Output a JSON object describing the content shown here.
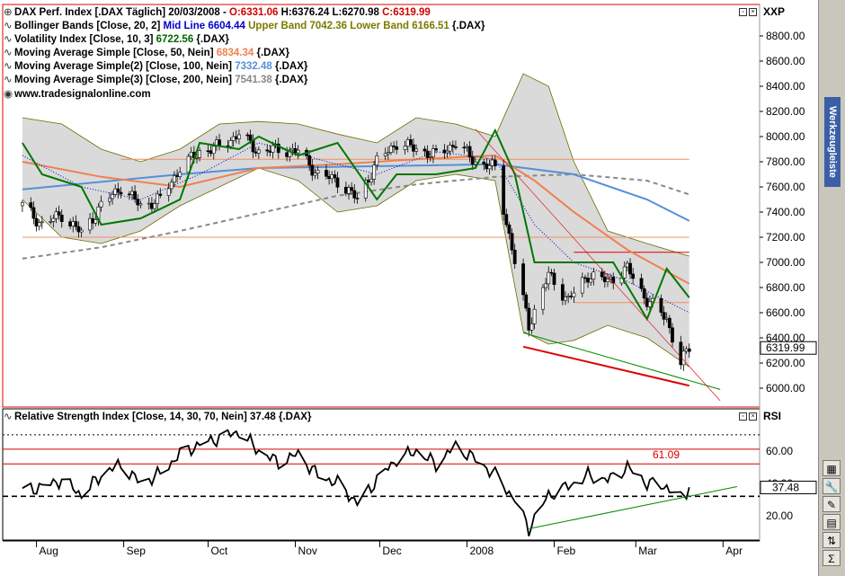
{
  "legend": {
    "price": {
      "prefix": "DAX Perf. Index [.DAX  Täglich] 20/03/2008 - ",
      "open": "O:6331.06",
      "high": " H:6376.24 L:6270.98 ",
      "close": "C:6319.99"
    },
    "bollinger": {
      "name": "Bollinger Bands [Close, 20, 2] ",
      "mid": "Mid Line 6604.44",
      "upper": " Upper Band 7042.36 Lower Band 6166.51",
      "suffix": " {.DAX}"
    },
    "volatility": {
      "name": "Volatility Index [Close, 10, 3] ",
      "value": "6722.56",
      "suffix": " {.DAX}"
    },
    "ma50": {
      "name": "Moving Average Simple [Close, 50, Nein] ",
      "value": "6834.34",
      "suffix": " {.DAX}"
    },
    "ma100": {
      "name": "Moving Average Simple(2) [Close, 100, Nein] ",
      "value": "7332.48",
      "suffix": " {.DAX}"
    },
    "ma200": {
      "name": "Moving Average Simple(3) [Close, 200, Nein] ",
      "value": "7541.38",
      "suffix": " {.DAX}"
    },
    "website": "www.tradesignalonline.com",
    "rsi": "Relative Strength Index [Close, 14, 30, 70, Nein] 37.48 {.DAX}"
  },
  "toolbar": {
    "title": "Werkzeugleiste"
  },
  "colors": {
    "candle_up": "#ffffff",
    "candle_down": "#000000",
    "bollinger_fill": "#d4d4d4",
    "bollinger_edge": "#6b6b00",
    "volatility": "#007700",
    "ma50": "#f08050",
    "ma100": "#5590d8",
    "ma200": "#888888",
    "mid_line": "#0000cc",
    "rsi": "#000000",
    "horizontal_lines": "#ff0000",
    "support": "#dd0000",
    "trend_green": "#008800"
  },
  "chart_data": [
    {
      "type": "candlestick",
      "axis_label": "XXP",
      "ylim": [
        5850,
        9050
      ],
      "y_ticks": [
        "8800.00",
        "8600.00",
        "8400.00",
        "8200.00",
        "8000.00",
        "7800.00",
        "7600.00",
        "7400.00",
        "7200.00",
        "7000.00",
        "6800.00",
        "6600.00",
        "6400.00",
        "6200.00",
        "6000.00"
      ],
      "x_labels": [
        "Aug",
        "Sep",
        "Oct",
        "Nov",
        "Dec",
        "2008",
        "Feb",
        "Mar",
        "Apr"
      ],
      "last_value": "6319.99",
      "close_path": [
        [
          "2007-07-27",
          7450
        ],
        [
          "2007-08-03",
          7300
        ],
        [
          "2007-08-10",
          7380
        ],
        [
          "2007-08-17",
          7230
        ],
        [
          "2007-08-24",
          7450
        ],
        [
          "2007-08-31",
          7600
        ],
        [
          "2007-09-07",
          7450
        ],
        [
          "2007-09-14",
          7500
        ],
        [
          "2007-09-21",
          7750
        ],
        [
          "2007-09-28",
          7880
        ],
        [
          "2007-10-05",
          7920
        ],
        [
          "2007-10-12",
          8020
        ],
        [
          "2007-10-19",
          7880
        ],
        [
          "2007-10-26",
          7900
        ],
        [
          "2007-11-02",
          7880
        ],
        [
          "2007-11-09",
          7700
        ],
        [
          "2007-11-16",
          7650
        ],
        [
          "2007-11-23",
          7500
        ],
        [
          "2007-11-30",
          7800
        ],
        [
          "2007-12-07",
          7950
        ],
        [
          "2007-12-14",
          7900
        ],
        [
          "2007-12-21",
          7850
        ],
        [
          "2007-12-28",
          7950
        ],
        [
          "2008-01-04",
          7800
        ],
        [
          "2008-01-11",
          7750
        ],
        [
          "2008-01-18",
          7000
        ],
        [
          "2008-01-23",
          6500
        ],
        [
          "2008-01-30",
          6900
        ],
        [
          "2008-02-06",
          6700
        ],
        [
          "2008-02-13",
          6900
        ],
        [
          "2008-02-20",
          6850
        ],
        [
          "2008-02-27",
          6950
        ],
        [
          "2008-03-05",
          6700
        ],
        [
          "2008-03-12",
          6550
        ],
        [
          "2008-03-17",
          6200
        ],
        [
          "2008-03-20",
          6320
        ]
      ],
      "bollinger_upper": [
        [
          "2007-07-27",
          8150
        ],
        [
          "2007-08-10",
          8100
        ],
        [
          "2007-08-24",
          7900
        ],
        [
          "2007-09-07",
          7800
        ],
        [
          "2007-09-21",
          7900
        ],
        [
          "2007-10-05",
          8100
        ],
        [
          "2007-10-19",
          8120
        ],
        [
          "2007-11-02",
          8100
        ],
        [
          "2007-11-16",
          8020
        ],
        [
          "2007-11-30",
          7950
        ],
        [
          "2007-12-14",
          8150
        ],
        [
          "2007-12-28",
          8100
        ],
        [
          "2008-01-11",
          8000
        ],
        [
          "2008-01-21",
          8500
        ],
        [
          "2008-01-30",
          8400
        ],
        [
          "2008-02-08",
          7800
        ],
        [
          "2008-02-20",
          7250
        ],
        [
          "2008-03-05",
          7150
        ],
        [
          "2008-03-20",
          7050
        ]
      ],
      "bollinger_lower": [
        [
          "2007-07-27",
          7500
        ],
        [
          "2007-08-10",
          7200
        ],
        [
          "2007-08-24",
          7150
        ],
        [
          "2007-09-07",
          7250
        ],
        [
          "2007-09-21",
          7450
        ],
        [
          "2007-10-05",
          7600
        ],
        [
          "2007-10-19",
          7750
        ],
        [
          "2007-11-02",
          7650
        ],
        [
          "2007-11-16",
          7400
        ],
        [
          "2007-11-30",
          7450
        ],
        [
          "2007-12-14",
          7650
        ],
        [
          "2007-12-28",
          7700
        ],
        [
          "2008-01-11",
          7650
        ],
        [
          "2008-01-21",
          6450
        ],
        [
          "2008-01-30",
          6350
        ],
        [
          "2008-02-08",
          6380
        ],
        [
          "2008-02-20",
          6500
        ],
        [
          "2008-03-05",
          6400
        ],
        [
          "2008-03-20",
          6170
        ]
      ],
      "mid_line": [
        [
          "2007-07-27",
          7850
        ],
        [
          "2007-08-17",
          7600
        ],
        [
          "2007-09-07",
          7500
        ],
        [
          "2007-09-28",
          7700
        ],
        [
          "2007-10-19",
          7950
        ],
        [
          "2007-11-09",
          7820
        ],
        [
          "2007-11-30",
          7700
        ],
        [
          "2007-12-21",
          7880
        ],
        [
          "2008-01-11",
          7820
        ],
        [
          "2008-01-25",
          7300
        ],
        [
          "2008-02-08",
          7000
        ],
        [
          "2008-02-27",
          6850
        ],
        [
          "2008-03-20",
          6600
        ]
      ],
      "volatility": [
        [
          "2007-07-27",
          7950
        ],
        [
          "2007-08-03",
          7700
        ],
        [
          "2007-08-17",
          7600
        ],
        [
          "2007-08-24",
          7300
        ],
        [
          "2007-09-07",
          7350
        ],
        [
          "2007-09-21",
          7500
        ],
        [
          "2007-09-28",
          7950
        ],
        [
          "2007-10-12",
          7900
        ],
        [
          "2007-10-19",
          8000
        ],
        [
          "2007-11-02",
          7850
        ],
        [
          "2007-11-16",
          7950
        ],
        [
          "2007-11-30",
          7500
        ],
        [
          "2007-12-07",
          7700
        ],
        [
          "2007-12-21",
          7700
        ],
        [
          "2008-01-04",
          7750
        ],
        [
          "2008-01-11",
          8050
        ],
        [
          "2008-01-18",
          7700
        ],
        [
          "2008-01-25",
          7000
        ],
        [
          "2008-02-08",
          7000
        ],
        [
          "2008-02-22",
          7000
        ],
        [
          "2008-03-05",
          6550
        ],
        [
          "2008-03-12",
          6950
        ],
        [
          "2008-03-20",
          6720
        ]
      ],
      "ma50": [
        [
          "2007-07-27",
          7800
        ],
        [
          "2007-08-24",
          7680
        ],
        [
          "2007-09-21",
          7600
        ],
        [
          "2007-10-19",
          7750
        ],
        [
          "2007-11-16",
          7780
        ],
        [
          "2007-12-14",
          7820
        ],
        [
          "2008-01-11",
          7850
        ],
        [
          "2008-01-25",
          7650
        ],
        [
          "2008-02-08",
          7400
        ],
        [
          "2008-02-27",
          7100
        ],
        [
          "2008-03-20",
          6830
        ]
      ],
      "ma100": [
        [
          "2007-07-27",
          7580
        ],
        [
          "2007-08-24",
          7640
        ],
        [
          "2007-09-21",
          7700
        ],
        [
          "2007-10-19",
          7750
        ],
        [
          "2007-11-16",
          7760
        ],
        [
          "2007-12-14",
          7770
        ],
        [
          "2008-01-11",
          7780
        ],
        [
          "2008-02-08",
          7700
        ],
        [
          "2008-03-05",
          7500
        ],
        [
          "2008-03-20",
          7330
        ]
      ],
      "ma200": [
        [
          "2007-07-27",
          7030
        ],
        [
          "2007-08-24",
          7120
        ],
        [
          "2007-09-21",
          7250
        ],
        [
          "2007-10-19",
          7390
        ],
        [
          "2007-11-16",
          7530
        ],
        [
          "2007-12-14",
          7620
        ],
        [
          "2008-01-11",
          7680
        ],
        [
          "2008-02-08",
          7700
        ],
        [
          "2008-03-05",
          7650
        ],
        [
          "2008-03-20",
          7540
        ]
      ],
      "horizontal_lines": [
        {
          "y": 7820,
          "from": "2007-08-31",
          "to": "2008-03-20",
          "color": "#f09060"
        },
        {
          "y": 7200,
          "from": "2007-07-27",
          "to": "2008-03-20",
          "color": "#f09060"
        },
        {
          "y": 7080,
          "from": "2008-02-08",
          "to": "2008-03-20",
          "color": "#dd0000"
        },
        {
          "y": 6680,
          "from": "2008-02-08",
          "to": "2008-03-20",
          "color": "#f09060"
        }
      ],
      "trend_lines": [
        {
          "from": [
            "2008-01-21",
            6330
          ],
          "to": [
            "2008-03-20",
            6020
          ],
          "color": "#dd0000",
          "width": 2
        },
        {
          "from": [
            "2008-01-21",
            6440
          ],
          "to": [
            "2008-03-31",
            5990
          ],
          "color": "#008800",
          "width": 1
        },
        {
          "from": [
            "2008-01-04",
            8060
          ],
          "to": [
            "2008-03-31",
            5900
          ],
          "color": "#dd0000",
          "width": 0.6
        }
      ]
    },
    {
      "type": "line",
      "axis_label": "RSI",
      "ylim": [
        5,
        86
      ],
      "y_ticks": [
        "60.00",
        "40.00",
        "20.00"
      ],
      "last_value": "37.48",
      "annotation": "61.09",
      "levels": [
        {
          "y": 70,
          "style": "dotted"
        },
        {
          "y": 61.09,
          "style": "solid-red"
        },
        {
          "y": 52,
          "style": "solid-red"
        },
        {
          "y": 32,
          "style": "dashed"
        }
      ],
      "rsi_path": [
        [
          "2007-07-27",
          35
        ],
        [
          "2007-08-03",
          38
        ],
        [
          "2007-08-10",
          42
        ],
        [
          "2007-08-17",
          33
        ],
        [
          "2007-08-24",
          45
        ],
        [
          "2007-08-31",
          52
        ],
        [
          "2007-09-07",
          40
        ],
        [
          "2007-09-14",
          46
        ],
        [
          "2007-09-21",
          58
        ],
        [
          "2007-09-28",
          64
        ],
        [
          "2007-10-05",
          68
        ],
        [
          "2007-10-12",
          72
        ],
        [
          "2007-10-19",
          60
        ],
        [
          "2007-10-26",
          53
        ],
        [
          "2007-11-02",
          58
        ],
        [
          "2007-11-09",
          45
        ],
        [
          "2007-11-16",
          40
        ],
        [
          "2007-11-23",
          28
        ],
        [
          "2007-11-30",
          42
        ],
        [
          "2007-12-07",
          55
        ],
        [
          "2007-12-14",
          60
        ],
        [
          "2007-12-21",
          52
        ],
        [
          "2007-12-28",
          63
        ],
        [
          "2008-01-04",
          55
        ],
        [
          "2008-01-11",
          45
        ],
        [
          "2008-01-18",
          30
        ],
        [
          "2008-01-23",
          12
        ],
        [
          "2008-01-30",
          33
        ],
        [
          "2008-02-06",
          38
        ],
        [
          "2008-02-13",
          45
        ],
        [
          "2008-02-20",
          42
        ],
        [
          "2008-02-27",
          50
        ],
        [
          "2008-03-05",
          40
        ],
        [
          "2008-03-12",
          38
        ],
        [
          "2008-03-17",
          30
        ],
        [
          "2008-03-20",
          37.48
        ]
      ],
      "trend_line": {
        "from": [
          "2008-01-23",
          12
        ],
        "to": [
          "2008-04-06",
          38
        ]
      }
    }
  ]
}
